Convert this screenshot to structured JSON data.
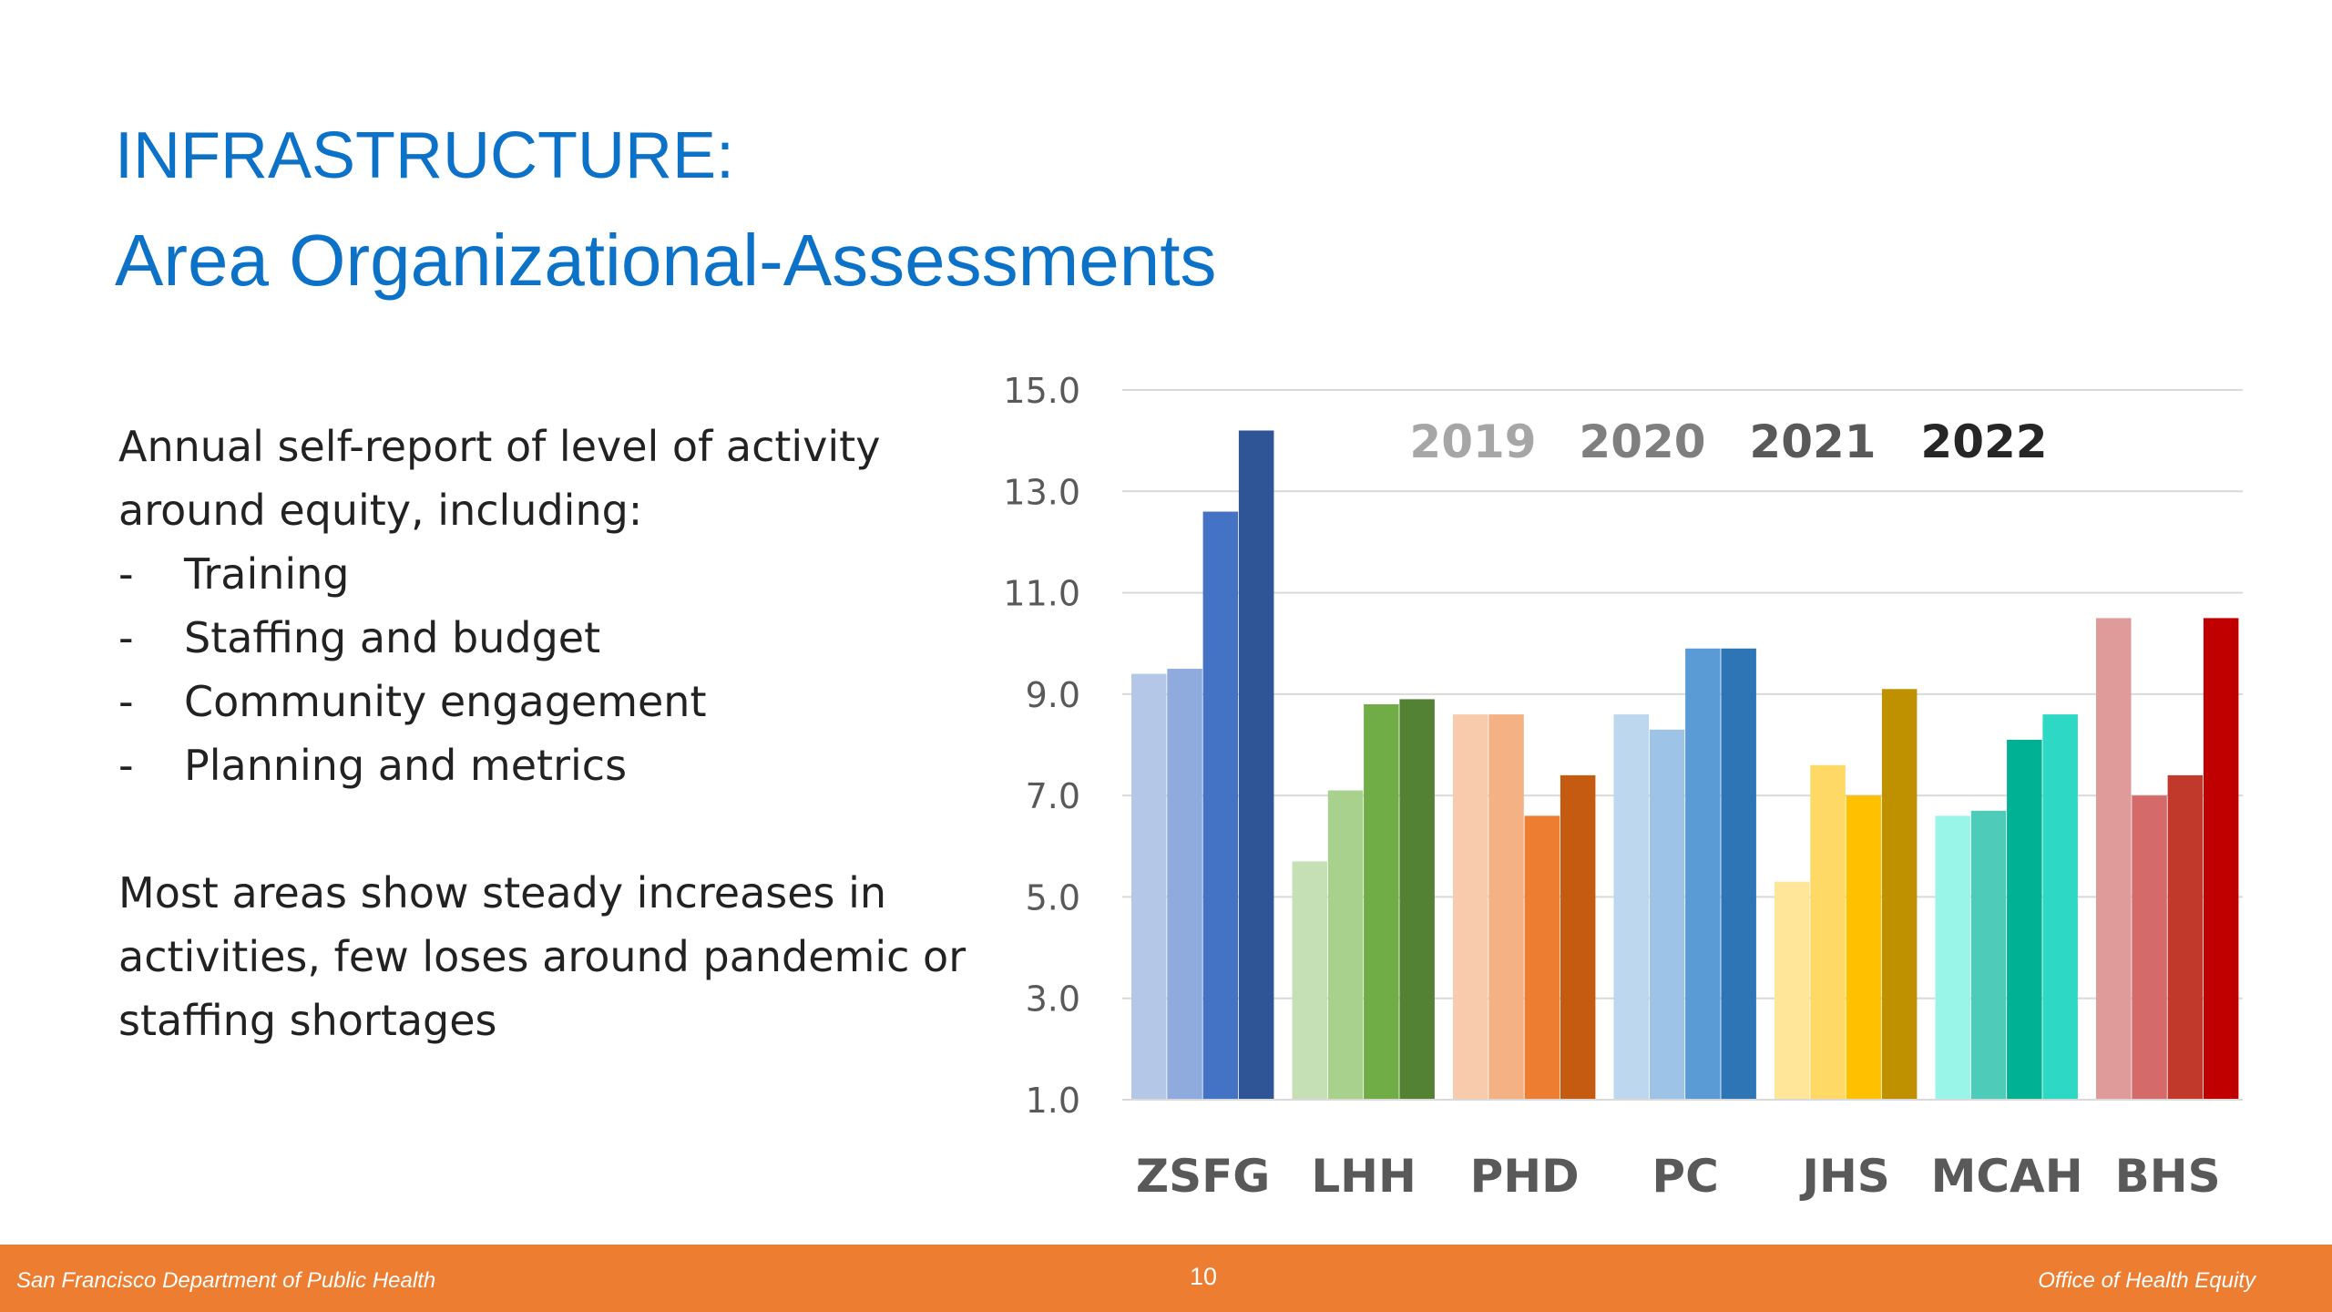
{
  "slide": {
    "title_line1": "INFRASTRUCTURE:",
    "title_line2": "Area Organizational-Assessments",
    "intro_line1": "Annual self-report of level of activity",
    "intro_line2": "around equity, including:",
    "bullets": [
      "Training",
      "Staffing and budget",
      "Community engagement",
      "Planning and metrics"
    ],
    "bullet_marker": "-",
    "summary_line1": "Most areas show steady increases in",
    "summary_line2": "activities, few loses around pandemic or",
    "summary_line3": "staffing shortages"
  },
  "footer": {
    "left": "San Francisco Department of Public Health",
    "page_number": "10",
    "right": "Office of Health Equity",
    "color": "#ed7d31"
  },
  "chart_data": {
    "type": "bar",
    "title": "",
    "xlabel": "",
    "ylabel": "",
    "ylim": [
      1.0,
      15.0
    ],
    "yticks": [
      "1.0",
      "3.0",
      "5.0",
      "7.0",
      "9.0",
      "11.0",
      "13.0",
      "15.0"
    ],
    "ytick_values": [
      1,
      3,
      5,
      7,
      9,
      11,
      13,
      15
    ],
    "grid": true,
    "legend_position": "top",
    "legend": [
      {
        "label": "2019",
        "color": "#a6a6a6"
      },
      {
        "label": "2020",
        "color": "#7f7f7f"
      },
      {
        "label": "2021",
        "color": "#595959"
      },
      {
        "label": "2022",
        "color": "#262626"
      }
    ],
    "categories": [
      "ZSFG",
      "LHH",
      "PHD",
      "PC",
      "JHS",
      "MCAH",
      "BHS"
    ],
    "series": [
      {
        "name": "2019",
        "values": [
          9.4,
          5.7,
          8.6,
          8.6,
          5.3,
          6.6,
          10.5
        ]
      },
      {
        "name": "2020",
        "values": [
          9.5,
          7.1,
          8.6,
          8.3,
          7.6,
          6.7,
          7.0
        ]
      },
      {
        "name": "2021",
        "values": [
          12.6,
          8.8,
          6.6,
          9.9,
          7.0,
          8.1,
          7.4
        ]
      },
      {
        "name": "2022",
        "values": [
          14.2,
          8.9,
          7.4,
          9.9,
          9.1,
          8.6,
          10.5
        ]
      }
    ],
    "colors": [
      [
        "#b4c7e7",
        "#8faadc",
        "#4472c4",
        "#2f5597"
      ],
      [
        "#c5e0b4",
        "#a9d18e",
        "#70ad47",
        "#548235"
      ],
      [
        "#f8cbad",
        "#f4b183",
        "#ed7d31",
        "#c55a11"
      ],
      [
        "#bdd7ee",
        "#9dc3e6",
        "#5b9bd5",
        "#2e75b6"
      ],
      [
        "#ffe699",
        "#ffd966",
        "#ffc000",
        "#bf9000"
      ],
      [
        "#99f5e8",
        "#4ecbb9",
        "#00b194",
        "#2dd9c5"
      ],
      [
        "#df9a9a",
        "#d46a6a",
        "#c0392b",
        "#c00000"
      ]
    ]
  }
}
